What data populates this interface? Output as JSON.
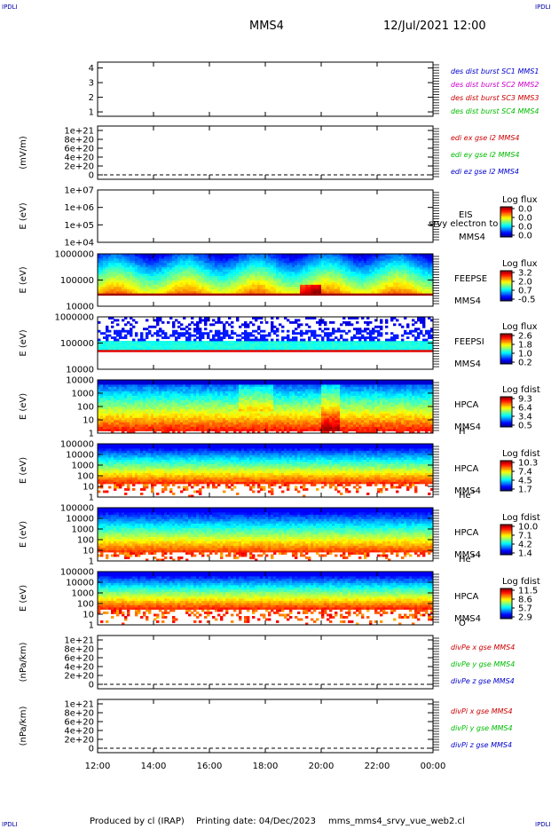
{
  "header": {
    "corner_label": "IPDLI",
    "spacecraft": "MMS4",
    "date_time": "12/Jul/2021 12:00"
  },
  "footer": {
    "producer": "Produced by cl (IRAP)",
    "printing_date": "Printing date: 04/Dec/2023",
    "filename": "mms_mms4_srvy_vue_web2.cl"
  },
  "chart_data": [
    {
      "type": "line",
      "ylabel": "",
      "yticks": [
        "1",
        "2",
        "3",
        "4"
      ],
      "ylim": [
        0.7,
        4.4
      ],
      "legend": [
        {
          "text": "des dist burst SC1 MMS1",
          "color": "#0000cc"
        },
        {
          "text": "des dist burst SC2 MMS2",
          "color": "#cc00cc"
        },
        {
          "text": "des dist burst SC3 MMS3",
          "color": "#cc0000"
        },
        {
          "text": "des dist burst SC4 MMS4",
          "color": "#00bb00"
        }
      ]
    },
    {
      "type": "line",
      "ylabel": "(mV/m)",
      "yticks": [
        "0",
        "2e+20",
        "4e+20",
        "6e+20",
        "8e+20",
        "1e+21"
      ],
      "zero_line": true,
      "legend": [
        {
          "text": "edi ex gse l2 MMS4",
          "color": "#cc0000"
        },
        {
          "text": "edi ey gse l2 MMS4",
          "color": "#00bb00"
        },
        {
          "text": "edi ez gse l2 MMS4",
          "color": "#0000cc"
        }
      ]
    },
    {
      "type": "heatmap",
      "ylabel": "E (eV)",
      "yticks": [
        "1e+04",
        "1e+05",
        "1e+06",
        "1e+07"
      ],
      "right_labels": [
        "EIS",
        "MMS4"
      ],
      "overlay_text": "srvy electron to",
      "colorbar": {
        "title": "Log flux",
        "ticks": [
          "0.0",
          "0.0",
          "0.0",
          "0.0"
        ]
      }
    },
    {
      "type": "heatmap",
      "ylabel": "E (eV)",
      "yticks": [
        "10000",
        "100000",
        "1000000"
      ],
      "right_labels": [
        "FEEPSE",
        "MMS4"
      ],
      "colorbar": {
        "title": "Log flux",
        "ticks": [
          "3.2",
          "2.0",
          "0.7",
          "-0.5"
        ]
      }
    },
    {
      "type": "heatmap",
      "ylabel": "E (eV)",
      "yticks": [
        "10000",
        "100000",
        "1000000"
      ],
      "right_labels": [
        "FEEPSI",
        "MMS4"
      ],
      "colorbar": {
        "title": "Log flux",
        "ticks": [
          "2.6",
          "1.8",
          "1.0",
          "0.2"
        ]
      }
    },
    {
      "type": "heatmap",
      "ylabel": "E (eV)",
      "yticks": [
        "1",
        "10",
        "100",
        "1000",
        "10000"
      ],
      "right_labels": [
        "HPCA",
        "MMS4"
      ],
      "species": "H",
      "species_sup": "+",
      "colorbar": {
        "title": "Log fdist",
        "ticks": [
          "9.3",
          "6.4",
          "3.4",
          "0.5"
        ]
      }
    },
    {
      "type": "heatmap",
      "ylabel": "E (eV)",
      "yticks": [
        "1",
        "10",
        "100",
        "1000",
        "10000",
        "100000"
      ],
      "right_labels": [
        "HPCA",
        "MMS4"
      ],
      "species": "He",
      "species_sup": "+",
      "colorbar": {
        "title": "Log fdist",
        "ticks": [
          "10.3",
          "7.4",
          "4.5",
          "1.7"
        ]
      }
    },
    {
      "type": "heatmap",
      "ylabel": "E (eV)",
      "yticks": [
        "1",
        "10",
        "100",
        "1000",
        "10000",
        "100000"
      ],
      "right_labels": [
        "HPCA",
        "MMS4"
      ],
      "species": "He",
      "species_sup": "++",
      "colorbar": {
        "title": "Log fdist",
        "ticks": [
          "10.0",
          "7.1",
          "4.2",
          "1.4"
        ]
      }
    },
    {
      "type": "heatmap",
      "ylabel": "E (eV)",
      "yticks": [
        "1",
        "10",
        "100",
        "1000",
        "10000",
        "100000"
      ],
      "right_labels": [
        "HPCA",
        "MMS4"
      ],
      "species": "O",
      "species_sup": "+",
      "colorbar": {
        "title": "Log fdist",
        "ticks": [
          "11.5",
          "8.6",
          "5.7",
          "2.9"
        ]
      }
    },
    {
      "type": "line",
      "ylabel": "(nPa/km)",
      "yticks": [
        "0",
        "2e+20",
        "4e+20",
        "6e+20",
        "8e+20",
        "1e+21"
      ],
      "zero_line": true,
      "legend": [
        {
          "text": "divPe x gse MMS4",
          "color": "#cc0000"
        },
        {
          "text": "divPe y gse MMS4",
          "color": "#00bb00"
        },
        {
          "text": "divPe z gse MMS4",
          "color": "#0000cc"
        }
      ]
    },
    {
      "type": "line",
      "ylabel": "(nPa/km)",
      "yticks": [
        "0",
        "2e+20",
        "4e+20",
        "6e+20",
        "8e+20",
        "1e+21"
      ],
      "zero_line": true,
      "legend": [
        {
          "text": "divPi x gse MMS4",
          "color": "#cc0000"
        },
        {
          "text": "divPi y gse MMS4",
          "color": "#00bb00"
        },
        {
          "text": "divPi z gse MMS4",
          "color": "#0000cc"
        }
      ]
    }
  ],
  "xaxis": {
    "ticks": [
      "12:00",
      "14:00",
      "16:00",
      "18:00",
      "20:00",
      "22:00",
      "00:00"
    ]
  }
}
